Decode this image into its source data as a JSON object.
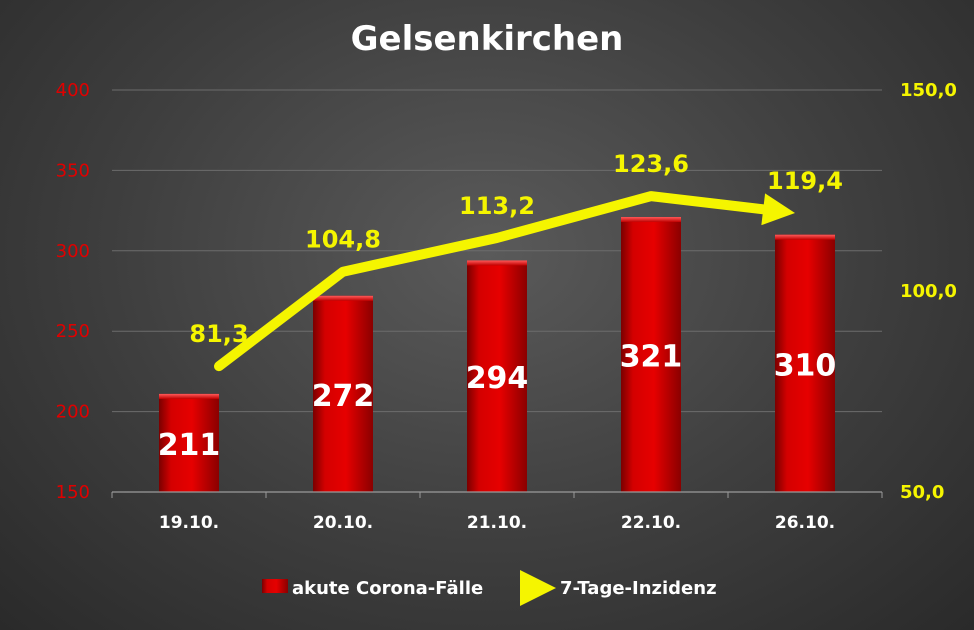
{
  "chart_data": {
    "type": "bar",
    "title": "Gelsenkirchen",
    "categories": [
      "19.10.",
      "20.10.",
      "21.10.",
      "22.10.",
      "26.10."
    ],
    "series": [
      {
        "name": "akute Corona-Fälle",
        "type": "bar",
        "axis": "left",
        "values": [
          211,
          272,
          294,
          321,
          310
        ],
        "labels": [
          "211",
          "272",
          "294",
          "321",
          "310"
        ],
        "color": "#cc0000"
      },
      {
        "name": "7-Tage-Inzidenz",
        "type": "line",
        "axis": "right",
        "values": [
          81.3,
          104.8,
          113.2,
          123.6,
          119.4
        ],
        "labels": [
          "81,3",
          "104,8",
          "113,2",
          "123,6",
          "119,4"
        ],
        "color": "#f5f500"
      }
    ],
    "y_left": {
      "ylim": [
        150,
        400
      ],
      "ticks": [
        150,
        200,
        250,
        300,
        350,
        400
      ],
      "tick_labels": [
        "150",
        "200",
        "250",
        "300",
        "350",
        "400"
      ],
      "color": "#e00000"
    },
    "y_right": {
      "ylim": [
        50,
        150
      ],
      "ticks": [
        50,
        100,
        150
      ],
      "tick_labels": [
        "50,0",
        "100,0",
        "150,0"
      ],
      "color": "#f5f500"
    },
    "grid": true,
    "legend_position": "bottom"
  }
}
